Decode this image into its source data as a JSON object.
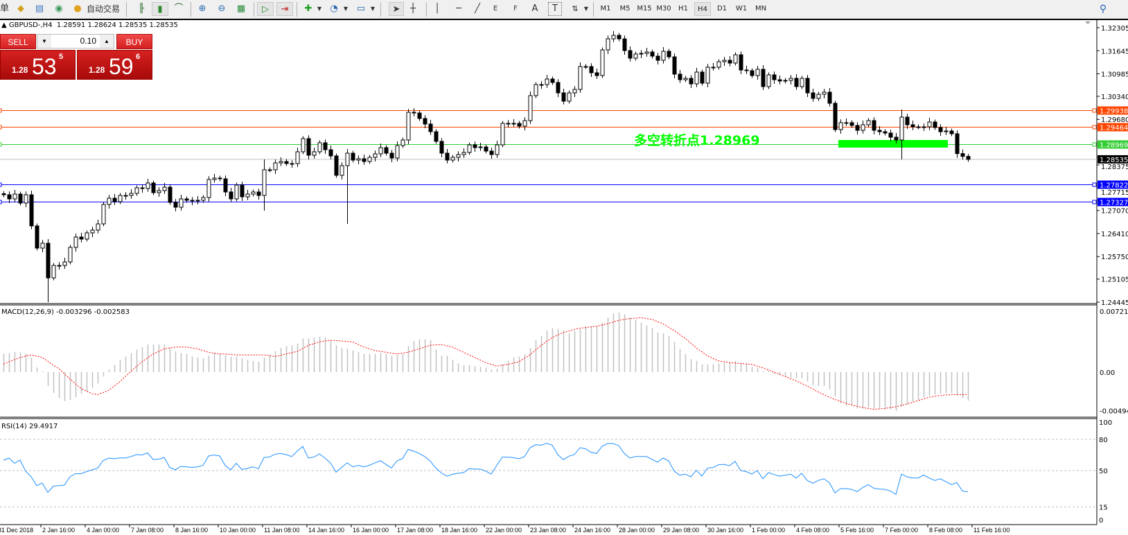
{
  "toolbar": {
    "menu_fragment": "单",
    "autotrade_label": "自动交易",
    "icons": [
      "open-folder-icon",
      "history-center-icon",
      "signals-icon",
      "autotrade-icon",
      "bar-chart-icon",
      "candlestick-icon",
      "line-chart-icon",
      "zoom-in-icon",
      "zoom-out-icon",
      "tile-windows-icon",
      "auto-scroll-icon",
      "chart-shift-icon",
      "indicators-icon",
      "periods-clock-icon",
      "templates-icon",
      "cursor-icon",
      "crosshair-icon",
      "vertical-line-icon",
      "horizontal-line-icon",
      "trendline-icon",
      "equidistant-channel-icon",
      "fibonacci-icon",
      "text-icon",
      "text-label-icon",
      "arrows-icon",
      "search-icon"
    ],
    "draw_labels": {
      "channel": "E",
      "fibo": "F",
      "text": "A",
      "label": "T"
    },
    "timeframes": [
      "M1",
      "M5",
      "M15",
      "M30",
      "H1",
      "H4",
      "D1",
      "W1",
      "MN"
    ],
    "active_timeframe": "H4"
  },
  "info": {
    "symbol": "GBPUSD-,H4",
    "ohlc": "1.28591 1.28624 1.28535 1.28535"
  },
  "trade_panel": {
    "sell_label": "SELL",
    "buy_label": "BUY",
    "lot": "0.10",
    "sell_price": {
      "prefix": "1.28",
      "big": "53",
      "sup": "5"
    },
    "buy_price": {
      "prefix": "1.28",
      "big": "59",
      "sup": "6"
    },
    "colors": {
      "button": "#e03030",
      "price": "#c01010"
    }
  },
  "chart_data": {
    "type": "candlestick",
    "symbol": "GBPUSD-",
    "timeframe": "H4",
    "ylim": [
      1.24445,
      1.32305
    ],
    "y_ticks": [
      "1.32305",
      "1.31645",
      "1.30985",
      "1.30340",
      "1.29680",
      "1.28375",
      "1.27715",
      "1.27070",
      "1.26410",
      "1.25750",
      "1.25105",
      "1.24445"
    ],
    "x_tick_labels": [
      "31 Dec 2018",
      "2 Jan 16:00",
      "4 Jan 00:00",
      "7 Jan 08:00",
      "8 Jan 16:00",
      "10 Jan 00:00",
      "11 Jan 08:00",
      "14 Jan 16:00",
      "16 Jan 00:00",
      "17 Jan 08:00",
      "18 Jan 16:00",
      "22 Jan 00:00",
      "23 Jan 08:00",
      "24 Jan 16:00",
      "28 Jan 00:00",
      "29 Jan 08:00",
      "30 Jan 16:00",
      "1 Feb 00:00",
      "4 Feb 08:00",
      "5 Feb 16:00",
      "7 Feb 00:00",
      "8 Feb 08:00",
      "11 Feb 16:00"
    ],
    "close": [
      1.27521,
      1.27402,
      1.27541,
      1.27283,
      1.27521,
      1.26628,
      1.25993,
      1.26132,
      1.25139,
      1.25496,
      1.25496,
      1.25596,
      1.26013,
      1.2631,
      1.26251,
      1.26429,
      1.26509,
      1.26687,
      1.27243,
      1.27422,
      1.27323,
      1.27501,
      1.27501,
      1.27561,
      1.2772,
      1.277,
      1.27859,
      1.27581,
      1.2764,
      1.27739,
      1.27303,
      1.27164,
      1.27402,
      1.27362,
      1.27342,
      1.27362,
      1.27442,
      1.27958,
      1.27998,
      1.27978,
      1.27601,
      1.27402,
      1.27799,
      1.27462,
      1.27541,
      1.27601,
      1.27501,
      1.28236,
      1.28236,
      1.28434,
      1.28474,
      1.28414,
      1.28414,
      1.28752,
      1.29129,
      1.28653,
      1.28752,
      1.2901,
      1.28811,
      1.28633,
      1.28077,
      1.28355,
      1.28712,
      1.28514,
      1.28553,
      1.28474,
      1.28593,
      1.28692,
      1.28871,
      1.28712,
      1.28573,
      1.2893,
      1.29089,
      1.29883,
      1.29863,
      1.29705,
      1.29546,
      1.29327,
      1.2905,
      1.28712,
      1.28514,
      1.28593,
      1.28672,
      1.28732,
      1.2895,
      1.28871,
      1.28891,
      1.28772,
      1.28672,
      1.2895,
      1.29566,
      1.29566,
      1.29566,
      1.29486,
      1.29645,
      1.3036,
      1.30677,
      1.30677,
      1.30836,
      1.30737,
      1.30439,
      1.30201,
      1.30439,
      1.30538,
      1.31193,
      1.31193,
      1.31015,
      1.30935,
      1.3167,
      1.31987,
      1.32087,
      1.31987,
      1.3165,
      1.31432,
      1.31551,
      1.31571,
      1.3161,
      1.31491,
      1.31372,
      1.3163,
      1.31471,
      1.30975,
      1.30816,
      1.30856,
      1.30697,
      1.31035,
      1.30717,
      1.31174,
      1.31174,
      1.31332,
      1.31372,
      1.31293,
      1.31531,
      1.31094,
      1.31074,
      1.30935,
      1.31114,
      1.30618,
      1.30955,
      1.30816,
      1.30777,
      1.30796,
      1.30856,
      1.30618,
      1.30856,
      1.30439,
      1.3028,
      1.30399,
      1.30459,
      1.30141,
      1.29387,
      1.29586,
      1.29586,
      1.29506,
      1.29367,
      1.29526,
      1.29645,
      1.29367,
      1.29327,
      1.29288,
      1.29169,
      1.29089,
      1.29744,
      1.29526,
      1.29466,
      1.29466,
      1.29466,
      1.29605,
      1.29447,
      1.29327,
      1.29347,
      1.29268,
      1.287,
      1.2862,
      1.28535
    ],
    "wick_extremes": [
      {
        "bar": 8,
        "low": 1.24445
      },
      {
        "bar": 47,
        "high": 1.28533,
        "low": 1.27066
      },
      {
        "bar": 62,
        "low": 1.26688
      },
      {
        "bar": 162,
        "high": 1.29963,
        "low": 1.28533
      }
    ],
    "current_price": {
      "value": 1.28535,
      "label": "1.28535",
      "color": "#000000"
    },
    "levels": [
      {
        "price": 1.29938,
        "label": "1.29938",
        "color": "#ff4500"
      },
      {
        "price": 1.29464,
        "label": "1.29464",
        "color": "#ff4500"
      },
      {
        "price": 1.28969,
        "label": "1.28969",
        "color": "#32cd32"
      },
      {
        "price": 1.27822,
        "label": "1.27822",
        "color": "#0000ff"
      },
      {
        "price": 1.27327,
        "label": "1.27327",
        "color": "#0000ff"
      }
    ],
    "annotation": {
      "text": "多空转折点1.28969",
      "color": "#00ff00"
    },
    "zone": {
      "color": "#00ff00",
      "from_bar": 151,
      "to_bar": 170
    },
    "candle_colors": {
      "bull": "#ffffff",
      "bear": "#000000",
      "outline": "#000000"
    },
    "macd": {
      "title": "MACD(12,26,9) -0.003296 -0.002583",
      "params": "12,26,9",
      "ylim": [
        -0.004943,
        0.007216
      ],
      "y_ticks": [
        "0.007216",
        "0.00",
        "-0.004943"
      ],
      "histogram_color": "#c0c0c0",
      "signal_color": "#ff0000",
      "histogram": [
        0.00214,
        0.00222,
        0.00235,
        0.00227,
        0.00214,
        0.00166,
        0.00053,
        0.0001,
        -0.0016,
        -0.0024,
        -0.003,
        -0.00334,
        -0.0032,
        -0.0029,
        -0.0025,
        -0.0023,
        -0.0018,
        -0.0013,
        -0.0005,
        0.0003,
        0.00085,
        0.0014,
        0.0018,
        0.0022,
        0.0026,
        0.0029,
        0.0032,
        0.0032,
        0.0032,
        0.0032,
        0.0028,
        0.0024,
        0.0022,
        0.0021,
        0.0018,
        0.0017,
        0.0016,
        0.0019,
        0.0022,
        0.0021,
        0.002,
        0.0018,
        0.0018,
        0.0016,
        0.0014,
        0.0013,
        0.0012,
        0.0017,
        0.002,
        0.0024,
        0.0028,
        0.003,
        0.0031,
        0.0033,
        0.0039,
        0.0039,
        0.004,
        0.0041,
        0.004,
        0.0037,
        0.0031,
        0.0028,
        0.0027,
        0.0025,
        0.0023,
        0.0021,
        0.0021,
        0.0021,
        0.0022,
        0.0021,
        0.0019,
        0.002,
        0.0021,
        0.003,
        0.0036,
        0.0038,
        0.0038,
        0.0037,
        0.0026,
        0.0019,
        0.0019,
        0.0014,
        0.001,
        0.0008,
        0.0008,
        0.0007,
        0.0006,
        0.0005,
        0.0003,
        0.0004,
        0.0009,
        0.0013,
        0.0017,
        0.0018,
        0.0021,
        0.0028,
        0.0037,
        0.0042,
        0.0048,
        0.0051,
        0.005,
        0.0048,
        0.0045,
        0.0048,
        0.005,
        0.0053,
        0.0053,
        0.0053,
        0.0057,
        0.0063,
        0.0068,
        0.0069,
        0.0067,
        0.0063,
        0.0061,
        0.0057,
        0.0054,
        0.0051,
        0.0046,
        0.0045,
        0.0042,
        0.0035,
        0.0027,
        0.0021,
        0.0015,
        0.0013,
        0.0009,
        0.0009,
        0.0009,
        0.001,
        0.0011,
        0.0011,
        0.0013,
        0.0011,
        0.001,
        0.0006,
        0.0005,
        0.0001,
        0.0001,
        -0.0002,
        -0.0003,
        -0.0005,
        -0.0006,
        -0.0007,
        -0.0007,
        -0.0011,
        -0.0015,
        -0.0016,
        -0.0016,
        -0.002,
        -0.0028,
        -0.0036,
        -0.0039,
        -0.0038,
        -0.0042,
        -0.0042,
        -0.0041,
        -0.0042,
        -0.0042,
        -0.0043,
        -0.0043,
        -0.0045,
        -0.004,
        -0.0037,
        -0.0034,
        -0.0032,
        -0.0029,
        -0.0027,
        -0.0026,
        -0.0025,
        -0.0024,
        -0.0024,
        -0.0027,
        -0.003,
        -0.003296
      ],
      "signal": [
        0.00093,
        0.0012,
        0.00145,
        0.0017,
        0.00185,
        0.002,
        0.00185,
        0.0017,
        0.00125,
        0.0008,
        0.0004,
        -0.0002,
        -0.0008,
        -0.00135,
        -0.0019,
        -0.0022,
        -0.0025,
        -0.0026,
        -0.00235,
        -0.0021,
        -0.0016,
        -0.0011,
        -0.0005,
        0.0001,
        0.00065,
        0.0012,
        0.00165,
        0.0021,
        0.0024,
        0.0027,
        0.0028,
        0.0029,
        0.0029,
        0.0029,
        0.0028,
        0.0027,
        0.0025,
        0.0023,
        0.0022,
        0.0021,
        0.0021,
        0.00205,
        0.002,
        0.002,
        0.002,
        0.002,
        0.002,
        0.002,
        0.0019,
        0.0018,
        0.00195,
        0.0021,
        0.00225,
        0.0024,
        0.00275,
        0.0031,
        0.0033,
        0.0035,
        0.0036,
        0.0037,
        0.00365,
        0.0036,
        0.00355,
        0.0035,
        0.0032,
        0.0029,
        0.0027,
        0.0025,
        0.0024,
        0.0023,
        0.0022,
        0.0021,
        0.0022,
        0.0023,
        0.0025,
        0.0027,
        0.0029,
        0.0031,
        0.00315,
        0.0032,
        0.00305,
        0.0029,
        0.0026,
        0.0023,
        0.002,
        0.0017,
        0.0014,
        0.0011,
        0.0009,
        0.0007,
        0.0008,
        0.0009,
        0.00105,
        0.0012,
        0.0016,
        0.002,
        0.00255,
        0.0031,
        0.00355,
        0.004,
        0.0043,
        0.0046,
        0.00475,
        0.00495,
        0.0051,
        0.00515,
        0.00525,
        0.0053,
        0.00545,
        0.0056,
        0.0058,
        0.006,
        0.0061,
        0.0062,
        0.00625,
        0.0063,
        0.0062,
        0.0061,
        0.00585,
        0.0056,
        0.0052,
        0.0048,
        0.00435,
        0.0039,
        0.00335,
        0.0028,
        0.00235,
        0.0019,
        0.0016,
        0.0013,
        0.0012,
        0.0011,
        0.00105,
        0.001,
        0.00095,
        0.0009,
        0.0007,
        0.0005,
        0.00025,
        0,
        -0.00025,
        -0.0005,
        -0.00075,
        -0.001,
        -0.0013,
        -0.0016,
        -0.00195,
        -0.0023,
        -0.0026,
        -0.0029,
        -0.00315,
        -0.0034,
        -0.0036,
        -0.0038,
        -0.00395,
        -0.0041,
        -0.0042,
        -0.0043,
        -0.00425,
        -0.0042,
        -0.0041,
        -0.004,
        -0.00385,
        -0.0037,
        -0.0035,
        -0.0033,
        -0.0031,
        -0.0029,
        -0.0028,
        -0.0027,
        -0.00265,
        -0.0026,
        -0.0026,
        -0.0026,
        -0.002583
      ]
    },
    "rsi": {
      "title": "RSI(14) 29.4917",
      "period": 14,
      "ylim": [
        0,
        100
      ],
      "y_ticks": [
        "100",
        "80",
        "50",
        "15",
        "0"
      ],
      "levels": [
        80,
        50,
        15
      ],
      "line_color": "#1e90ff",
      "values": [
        60,
        62,
        57,
        60,
        49.5,
        44,
        35.5,
        38,
        29,
        35,
        35.5,
        36,
        44,
        47,
        47,
        49,
        50.7,
        52.5,
        59.7,
        62,
        61.3,
        62.2,
        62.2,
        63.5,
        65.3,
        65,
        67,
        60.6,
        61,
        62.6,
        53,
        50.7,
        54,
        53.6,
        53,
        53.6,
        55,
        64,
        65,
        64,
        55,
        50.7,
        57,
        51,
        52,
        53.6,
        51.8,
        62.6,
        63,
        65.8,
        66.5,
        65.3,
        63.5,
        68.7,
        73.2,
        62,
        63,
        66,
        62,
        57.4,
        48.4,
        53,
        57.4,
        53.6,
        55,
        53.6,
        55,
        57.4,
        59.5,
        55.9,
        52.5,
        59.3,
        61.5,
        70.3,
        68.7,
        66.5,
        63.5,
        59,
        52.5,
        47.7,
        44.6,
        46.4,
        47.3,
        48,
        51.8,
        51.4,
        51.4,
        49.5,
        46.6,
        55,
        62.9,
        62.9,
        62.4,
        61.3,
        63.5,
        72,
        74.8,
        74.4,
        76.2,
        74.4,
        65.3,
        60.4,
        63.8,
        65.3,
        72,
        71,
        67.5,
        66.5,
        73.3,
        76,
        76,
        74,
        66.5,
        62,
        63.5,
        63.5,
        63.5,
        60.8,
        58.1,
        62,
        59.3,
        49.5,
        45.5,
        46.6,
        43.9,
        50.2,
        44.6,
        52.5,
        52.9,
        55.6,
        55.9,
        54.7,
        58.8,
        50,
        49,
        46.6,
        50,
        42.1,
        48,
        46.2,
        44.6,
        45.5,
        46.6,
        42.8,
        47.3,
        40.5,
        37.8,
        40.5,
        42.1,
        38.3,
        28.6,
        32.6,
        32.6,
        31.9,
        29.7,
        33.7,
        36.5,
        33.1,
        32.2,
        31.9,
        30.4,
        27,
        46.6,
        43.9,
        42.8,
        42.8,
        45.7,
        42.8,
        40.5,
        42.1,
        39.4,
        36.5,
        38.3,
        30.4,
        29.4917
      ]
    }
  }
}
